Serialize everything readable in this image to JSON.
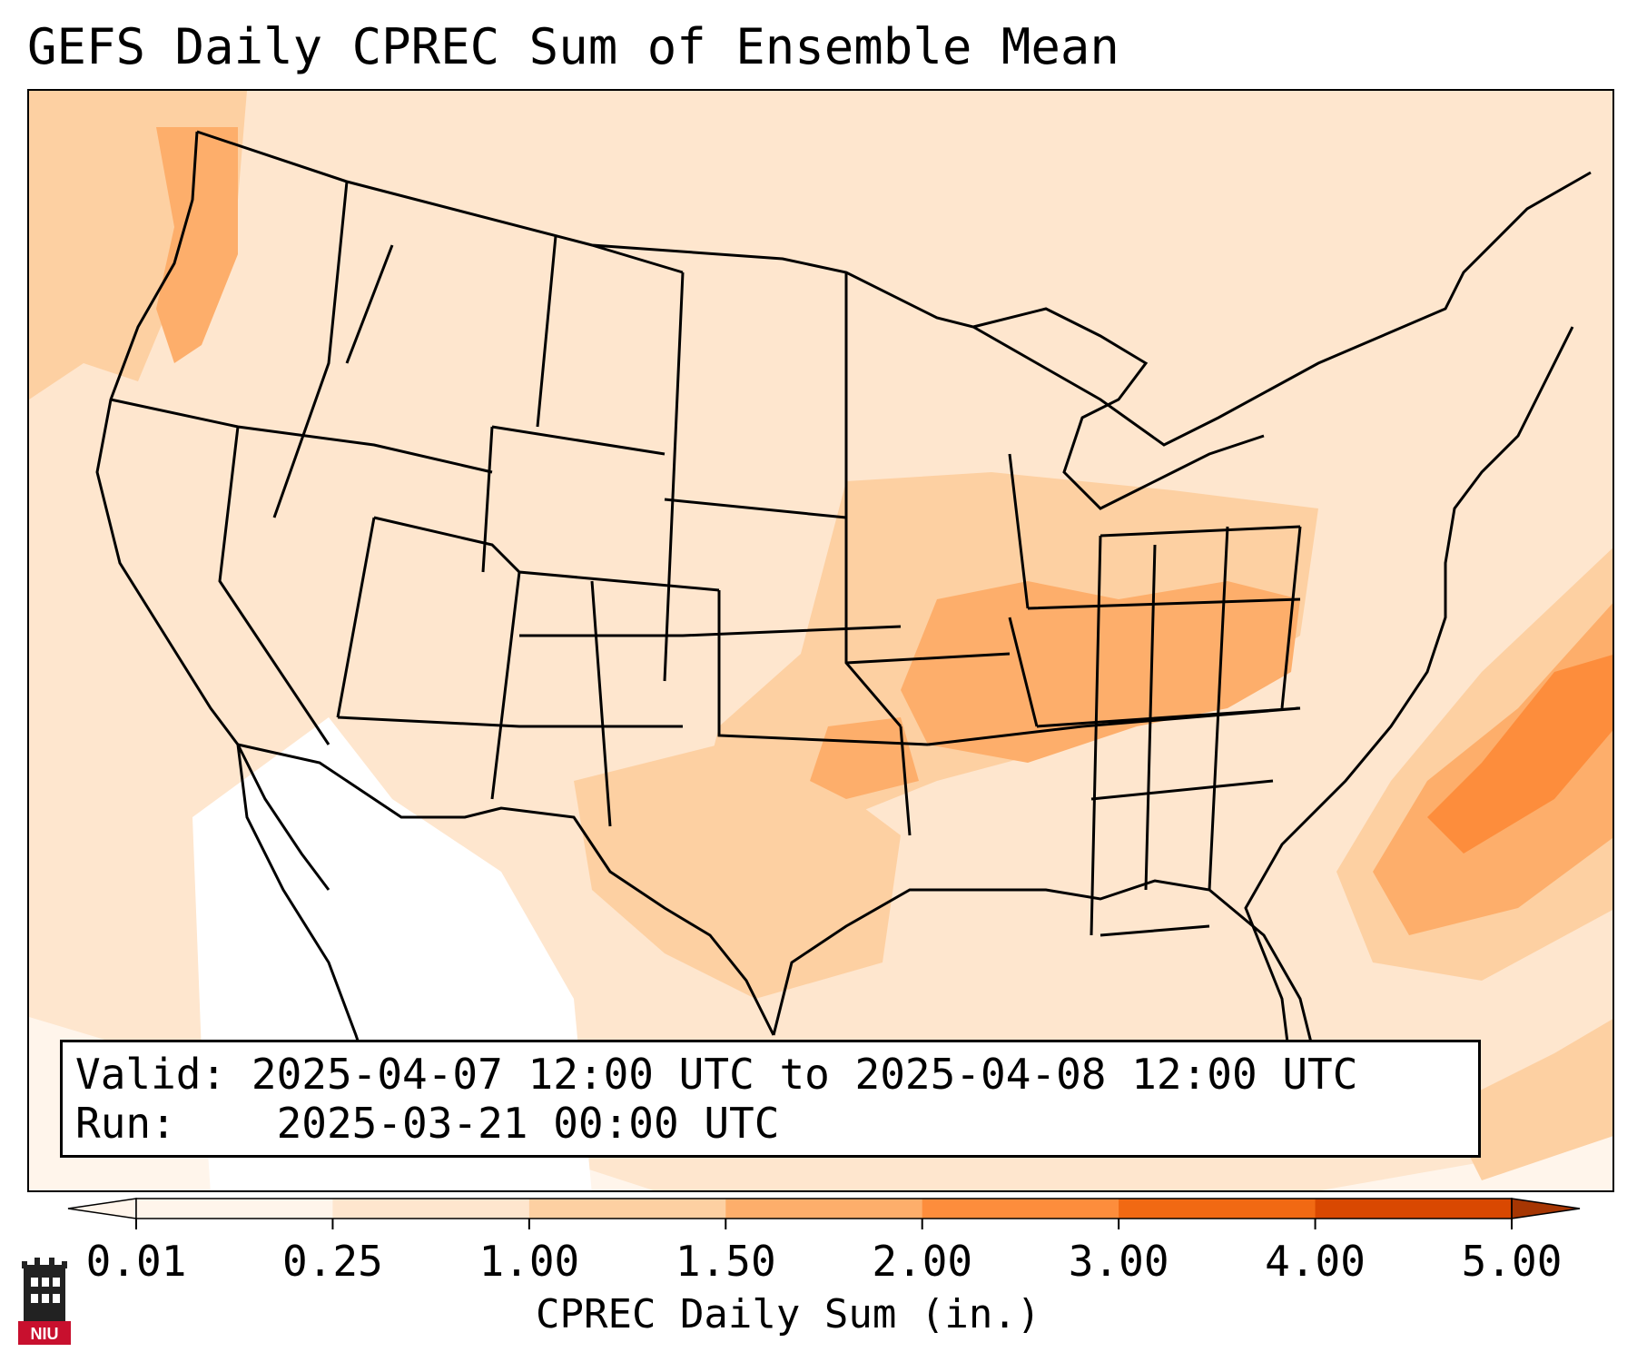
{
  "title": "GEFS Daily CPREC Sum of Ensemble Mean",
  "info": {
    "valid_label": "Valid:",
    "valid_value": "2025-04-07 12:00 UTC to 2025-04-08 12:00 UTC",
    "run_label": "Run:",
    "run_value": "2025-03-21 00:00 UTC"
  },
  "colorbar": {
    "label": "CPREC Daily Sum (in.)",
    "ticks": [
      "0.01",
      "0.25",
      "1.00",
      "1.50",
      "2.00",
      "3.00",
      "4.00",
      "5.00"
    ],
    "colors": [
      "#fff5eb",
      "#fee6ce",
      "#fdd0a2",
      "#fdae6b",
      "#fd8d3c",
      "#f16913",
      "#d94801",
      "#a63603"
    ],
    "extend": "both"
  },
  "logo": {
    "text": "NIU",
    "icon": "university-tower-icon",
    "color": "#c8102e"
  },
  "map": {
    "region": "CONUS",
    "field": "CPREC daily sum",
    "colors": {
      "light": "#fff5eb",
      "pale": "#fee6ce",
      "tan": "#fdd0a2",
      "orange": "#fdae6b",
      "dark_orange": "#fd8d3c"
    }
  }
}
